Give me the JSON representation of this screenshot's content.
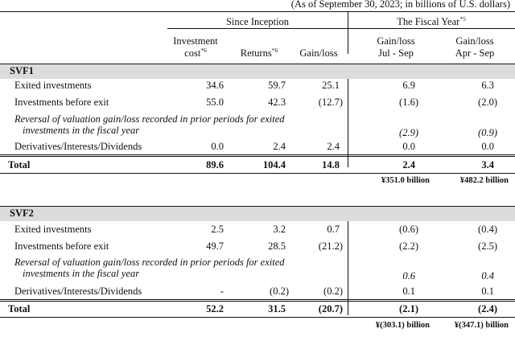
{
  "note": "(As of September 30, 2023; in billions of U.S. dollars)",
  "headers": {
    "since_inception": "Since Inception",
    "fiscal_year": "The Fiscal Year",
    "fiscal_year_note": "*5",
    "investment_cost_line1": "Investment",
    "investment_cost_line2": "cost",
    "investment_cost_note": "*6",
    "returns": "Returns",
    "returns_note": "*6",
    "gain_loss": "Gain/loss",
    "jul_sep_line1": "Gain/loss",
    "jul_sep_line2": "Jul - Sep",
    "apr_sep_line1": "Gain/loss",
    "apr_sep_line2": "Apr - Sep"
  },
  "svf1": {
    "title": "SVF1",
    "rows": [
      {
        "label": "Exited investments",
        "cost": "34.6",
        "returns": "59.7",
        "gain": "25.1",
        "jul": "6.9",
        "apr": "6.3"
      },
      {
        "label": "Investments before exit",
        "cost": "55.0",
        "returns": "42.3",
        "gain": "(12.7)",
        "jul": "(1.6)",
        "apr": "(2.0)"
      }
    ],
    "reversal_line1": "Reversal of valuation gain/loss recorded in prior periods for exited",
    "reversal_line2": "investments in the fiscal year",
    "reversal_jul": "(2.9)",
    "reversal_apr": "(0.9)",
    "deriv": {
      "label": "Derivatives/Interests/Dividends",
      "cost": "0.0",
      "returns": "2.4",
      "gain": "2.4",
      "jul": "0.0",
      "apr": "0.0"
    },
    "total": {
      "label": "Total",
      "cost": "89.6",
      "returns": "104.4",
      "gain": "14.8",
      "jul": "2.4",
      "apr": "3.4"
    },
    "yen_jul": "¥351.0 billion",
    "yen_apr": "¥482.2 billion"
  },
  "svf2": {
    "title": "SVF2",
    "rows": [
      {
        "label": "Exited investments",
        "cost": "2.5",
        "returns": "3.2",
        "gain": "0.7",
        "jul": "(0.6)",
        "apr": "(0.4)"
      },
      {
        "label": "Investments before exit",
        "cost": "49.7",
        "returns": "28.5",
        "gain": "(21.2)",
        "jul": "(2.2)",
        "apr": "(2.5)"
      }
    ],
    "reversal_line1": "Reversal of valuation gain/loss recorded in prior periods for exited",
    "reversal_line2": "investments in the fiscal year",
    "reversal_jul": "0.6",
    "reversal_apr": "0.4",
    "deriv": {
      "label": "Derivatives/Interests/Dividends",
      "cost": "-",
      "returns": "(0.2)",
      "gain": "(0.2)",
      "jul": "0.1",
      "apr": "0.1"
    },
    "total": {
      "label": "Total",
      "cost": "52.2",
      "returns": "31.5",
      "gain": "(20.7)",
      "jul": "(2.1)",
      "apr": "(2.4)"
    },
    "yen_jul": "¥(303.1) billion",
    "yen_apr": "¥(347.1) billion"
  }
}
